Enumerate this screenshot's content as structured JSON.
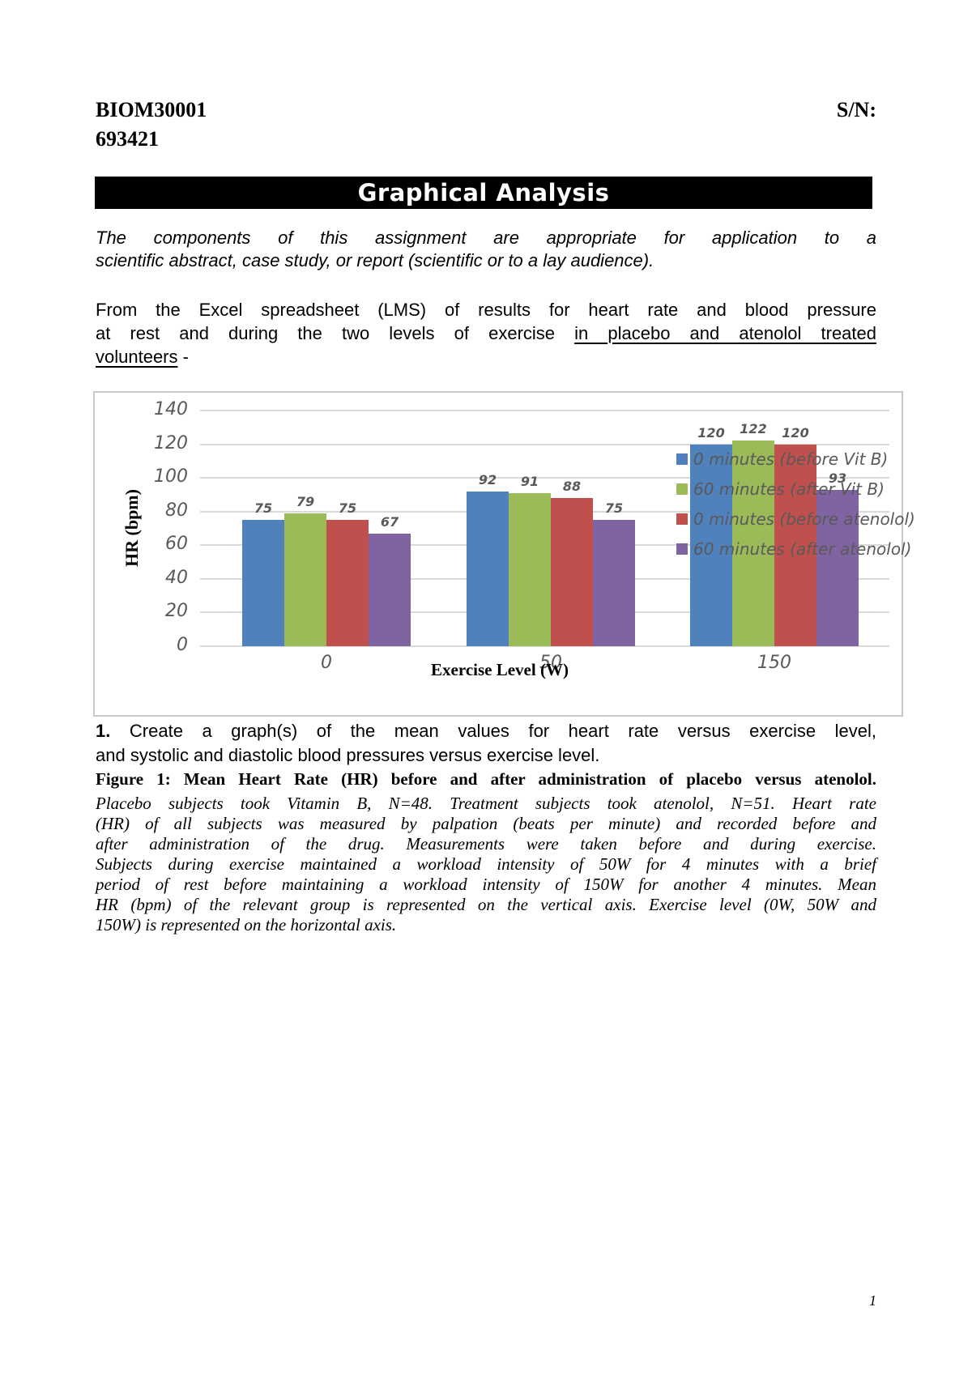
{
  "header": {
    "course_code": "BIOM30001",
    "serial_label": "S/N:",
    "student_number": "693421"
  },
  "banner": {
    "title": "Graphical Analysis"
  },
  "intro": {
    "lines": [
      "The components of this assignment are appropriate for application to a",
      "scientific abstract, case study, or report (scientific or to a lay audience)."
    ]
  },
  "brief": {
    "line1": "From the Excel spreadsheet (LMS) of results for heart rate and blood pressure",
    "line2_prefix": "at rest and during the two levels of exercise ",
    "line2_underlined": "in placebo and atenolol treated",
    "line3_underlined": "volunteers",
    "line3_suffix": " -"
  },
  "chart_data": {
    "type": "bar",
    "title": "",
    "xlabel": "Exercise Level (W)",
    "ylabel": "HR (bpm)",
    "categories": [
      "0",
      "50",
      "150"
    ],
    "series": [
      {
        "name": "0 minutes (before Vit B)",
        "color": "#4f81bd",
        "values": [
          75,
          92,
          120
        ]
      },
      {
        "name": "60 minutes (after Vit B)",
        "color": "#9bbb59",
        "values": [
          79,
          91,
          122
        ]
      },
      {
        "name": "0 minutes (before atenolol)",
        "color": "#c0504d",
        "values": [
          75,
          88,
          120
        ]
      },
      {
        "name": "60 minutes (after atenolol)",
        "color": "#8064a2",
        "values": [
          67,
          75,
          93
        ]
      }
    ],
    "ylim": [
      0,
      140
    ],
    "ytick_step": 20,
    "grid": true,
    "legend_position": "right-overlay",
    "data_labels": true
  },
  "question": {
    "number": "1.",
    "line1": " Create a graph(s) of the mean values for heart rate versus exercise level,",
    "line2": "and systolic and diastolic blood pressures versus exercise level."
  },
  "caption": {
    "bold_line": "Figure 1: Mean Heart Rate (HR) before and after administration of placebo versus atenolol.",
    "italic_lines": [
      "Placebo subjects took Vitamin B, N=48. Treatment subjects took atenolol, N=51. Heart rate",
      "(HR) of all subjects was measured by palpation (beats per minute) and recorded before and",
      "after administration of the drug. Measurements were taken before and during exercise.",
      "Subjects during exercise maintained a workload intensity of 50W for 4 minutes with a brief",
      "period of rest before maintaining a workload intensity of 150W for another 4 minutes. Mean",
      "HR (bpm) of the relevant group is represented on the vertical axis. Exercise level (0W, 50W and",
      "150W) is represented on the horizontal axis."
    ]
  },
  "footer": {
    "page_number": "1"
  }
}
